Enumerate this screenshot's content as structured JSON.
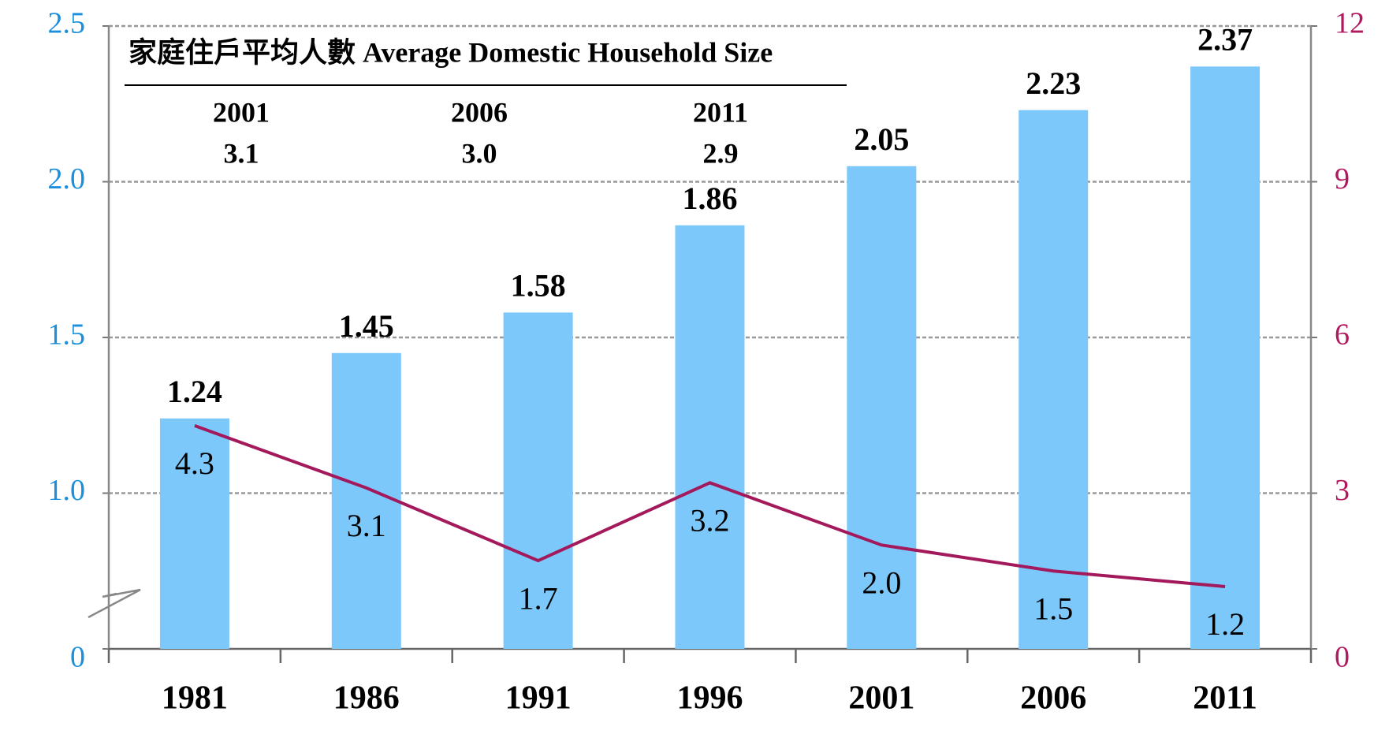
{
  "chart_data": {
    "type": "bar",
    "categories": [
      "1981",
      "1986",
      "1991",
      "1996",
      "2001",
      "2006",
      "2011"
    ],
    "series": [
      {
        "type": "bar",
        "color": "#7cc8fb",
        "values": [
          1.24,
          1.45,
          1.58,
          1.86,
          2.05,
          2.23,
          2.37
        ]
      },
      {
        "type": "line",
        "axis": "y2",
        "color": "#a3195b",
        "values": [
          4.3,
          3.1,
          1.7,
          3.2,
          2.0,
          1.5,
          1.2
        ],
        "value_labels": [
          "4.3",
          "3.1",
          "1.7",
          "3.2",
          "2.0",
          "1.5",
          "1.2"
        ]
      }
    ],
    "ylim": [
      0,
      2.5
    ],
    "yticks": [
      0,
      {
        "value": 1,
        "label": "1.0"
      },
      1.5,
      {
        "value": 2,
        "label": "2.0"
      },
      2.5
    ],
    "y2lim": [
      0,
      12
    ],
    "y2ticks": [
      0,
      3,
      6,
      9,
      12
    ],
    "axis_break": true,
    "grid": true,
    "inset": {
      "title": "家庭住戶平均人數 Average Domestic Household Size",
      "years": [
        "2001",
        "2006",
        "2011"
      ],
      "values": [
        "3.1",
        "3.0",
        "2.9"
      ]
    }
  }
}
